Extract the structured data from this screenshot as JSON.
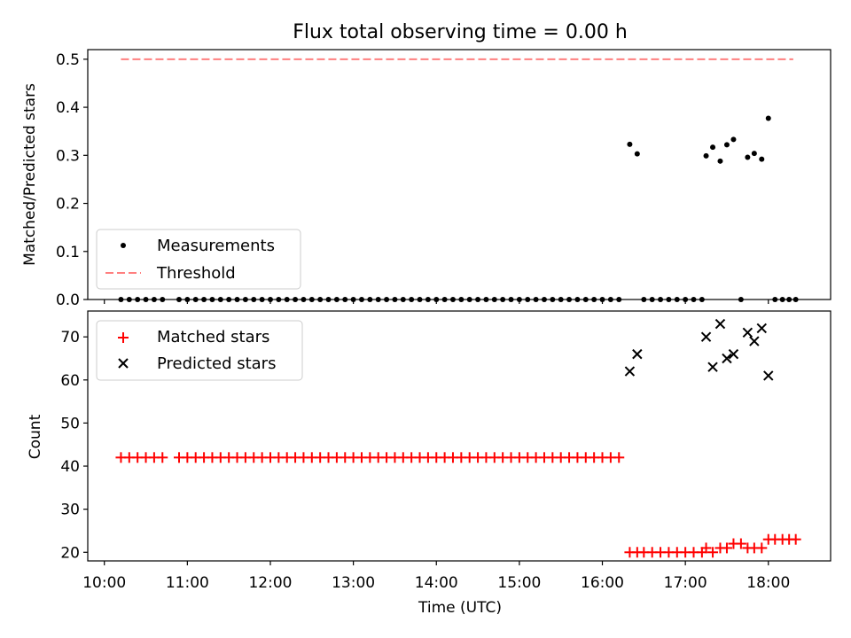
{
  "colors": {
    "measurement": "#000000",
    "threshold": "#ff7f7f",
    "matched": "#ff0000",
    "predicted": "#000000",
    "axis": "#000000",
    "legend_border": "#cccccc"
  },
  "chart_data": {
    "title": "Flux total observing time = 0.00 h",
    "xlabel": "Time (UTC)",
    "x_ticks": [
      "10:00",
      "11:00",
      "12:00",
      "13:00",
      "14:00",
      "15:00",
      "16:00",
      "17:00",
      "18:00"
    ],
    "x_range_hours": [
      9.8,
      18.75
    ],
    "panels": [
      {
        "name": "ratio",
        "type": "scatter",
        "ylabel": "Matched/Predicted stars",
        "ylim": [
          0.0,
          0.52
        ],
        "yticks": [
          "0.0",
          "0.1",
          "0.2",
          "0.3",
          "0.4",
          "0.5"
        ],
        "legend": {
          "placement": "lower-left",
          "entries": [
            "Measurements",
            "Threshold"
          ]
        },
        "threshold": {
          "name": "Threshold",
          "value": 0.5,
          "x_start": 10.2,
          "x_end": 18.3
        },
        "series": [
          {
            "name": "Measurements",
            "marker": "dot",
            "points": [
              [
                10.2,
                0
              ],
              [
                10.3,
                0
              ],
              [
                10.4,
                0
              ],
              [
                10.5,
                0
              ],
              [
                10.6,
                0
              ],
              [
                10.7,
                0
              ],
              [
                10.9,
                0
              ],
              [
                11.0,
                0
              ],
              [
                11.1,
                0
              ],
              [
                11.2,
                0
              ],
              [
                11.3,
                0
              ],
              [
                11.4,
                0
              ],
              [
                11.5,
                0
              ],
              [
                11.6,
                0
              ],
              [
                11.7,
                0
              ],
              [
                11.8,
                0
              ],
              [
                11.9,
                0
              ],
              [
                12.0,
                0
              ],
              [
                12.1,
                0
              ],
              [
                12.2,
                0
              ],
              [
                12.3,
                0
              ],
              [
                12.4,
                0
              ],
              [
                12.5,
                0
              ],
              [
                12.6,
                0
              ],
              [
                12.7,
                0
              ],
              [
                12.8,
                0
              ],
              [
                12.9,
                0
              ],
              [
                13.0,
                0
              ],
              [
                13.1,
                0
              ],
              [
                13.2,
                0
              ],
              [
                13.3,
                0
              ],
              [
                13.4,
                0
              ],
              [
                13.5,
                0
              ],
              [
                13.6,
                0
              ],
              [
                13.7,
                0
              ],
              [
                13.8,
                0
              ],
              [
                13.9,
                0
              ],
              [
                14.0,
                0
              ],
              [
                14.1,
                0
              ],
              [
                14.2,
                0
              ],
              [
                14.3,
                0
              ],
              [
                14.4,
                0
              ],
              [
                14.5,
                0
              ],
              [
                14.6,
                0
              ],
              [
                14.7,
                0
              ],
              [
                14.8,
                0
              ],
              [
                14.9,
                0
              ],
              [
                15.0,
                0
              ],
              [
                15.1,
                0
              ],
              [
                15.2,
                0
              ],
              [
                15.3,
                0
              ],
              [
                15.4,
                0
              ],
              [
                15.5,
                0
              ],
              [
                15.6,
                0
              ],
              [
                15.7,
                0
              ],
              [
                15.8,
                0
              ],
              [
                15.9,
                0
              ],
              [
                16.0,
                0
              ],
              [
                16.1,
                0
              ],
              [
                16.2,
                0
              ],
              [
                16.33,
                0.323
              ],
              [
                16.42,
                0.303
              ],
              [
                16.5,
                0
              ],
              [
                16.6,
                0
              ],
              [
                16.7,
                0
              ],
              [
                16.8,
                0
              ],
              [
                16.9,
                0
              ],
              [
                17.0,
                0
              ],
              [
                17.1,
                0
              ],
              [
                17.2,
                0
              ],
              [
                17.25,
                0.299
              ],
              [
                17.33,
                0.317
              ],
              [
                17.42,
                0.288
              ],
              [
                17.5,
                0.322
              ],
              [
                17.58,
                0.333
              ],
              [
                17.67,
                0
              ],
              [
                17.75,
                0.296
              ],
              [
                17.83,
                0.304
              ],
              [
                17.92,
                0.292
              ],
              [
                18.0,
                0.377
              ],
              [
                18.08,
                0
              ],
              [
                18.17,
                0
              ],
              [
                18.25,
                0
              ],
              [
                18.33,
                0
              ]
            ]
          }
        ]
      },
      {
        "name": "count",
        "type": "scatter",
        "ylabel": "Count",
        "ylim": [
          18,
          76
        ],
        "yticks": [
          "20",
          "30",
          "40",
          "50",
          "60",
          "70"
        ],
        "legend": {
          "placement": "upper-left",
          "entries": [
            "Matched stars",
            "Predicted stars"
          ]
        },
        "series": [
          {
            "name": "Matched stars",
            "marker": "plus",
            "points": [
              [
                10.2,
                42
              ],
              [
                10.3,
                42
              ],
              [
                10.4,
                42
              ],
              [
                10.5,
                42
              ],
              [
                10.6,
                42
              ],
              [
                10.7,
                42
              ],
              [
                10.9,
                42
              ],
              [
                11.0,
                42
              ],
              [
                11.1,
                42
              ],
              [
                11.2,
                42
              ],
              [
                11.3,
                42
              ],
              [
                11.4,
                42
              ],
              [
                11.5,
                42
              ],
              [
                11.6,
                42
              ],
              [
                11.7,
                42
              ],
              [
                11.8,
                42
              ],
              [
                11.9,
                42
              ],
              [
                12.0,
                42
              ],
              [
                12.1,
                42
              ],
              [
                12.2,
                42
              ],
              [
                12.3,
                42
              ],
              [
                12.4,
                42
              ],
              [
                12.5,
                42
              ],
              [
                12.6,
                42
              ],
              [
                12.7,
                42
              ],
              [
                12.8,
                42
              ],
              [
                12.9,
                42
              ],
              [
                13.0,
                42
              ],
              [
                13.1,
                42
              ],
              [
                13.2,
                42
              ],
              [
                13.3,
                42
              ],
              [
                13.4,
                42
              ],
              [
                13.5,
                42
              ],
              [
                13.6,
                42
              ],
              [
                13.7,
                42
              ],
              [
                13.8,
                42
              ],
              [
                13.9,
                42
              ],
              [
                14.0,
                42
              ],
              [
                14.1,
                42
              ],
              [
                14.2,
                42
              ],
              [
                14.3,
                42
              ],
              [
                14.4,
                42
              ],
              [
                14.5,
                42
              ],
              [
                14.6,
                42
              ],
              [
                14.7,
                42
              ],
              [
                14.8,
                42
              ],
              [
                14.9,
                42
              ],
              [
                15.0,
                42
              ],
              [
                15.1,
                42
              ],
              [
                15.2,
                42
              ],
              [
                15.3,
                42
              ],
              [
                15.4,
                42
              ],
              [
                15.5,
                42
              ],
              [
                15.6,
                42
              ],
              [
                15.7,
                42
              ],
              [
                15.8,
                42
              ],
              [
                15.9,
                42
              ],
              [
                16.0,
                42
              ],
              [
                16.1,
                42
              ],
              [
                16.2,
                42
              ],
              [
                16.33,
                20
              ],
              [
                16.42,
                20
              ],
              [
                16.5,
                20
              ],
              [
                16.6,
                20
              ],
              [
                16.7,
                20
              ],
              [
                16.8,
                20
              ],
              [
                16.9,
                20
              ],
              [
                17.0,
                20
              ],
              [
                17.1,
                20
              ],
              [
                17.2,
                20
              ],
              [
                17.25,
                21
              ],
              [
                17.33,
                20
              ],
              [
                17.42,
                21
              ],
              [
                17.5,
                21
              ],
              [
                17.58,
                22
              ],
              [
                17.67,
                22
              ],
              [
                17.75,
                21
              ],
              [
                17.83,
                21
              ],
              [
                17.92,
                21
              ],
              [
                18.0,
                23
              ],
              [
                18.08,
                23
              ],
              [
                18.17,
                23
              ],
              [
                18.25,
                23
              ],
              [
                18.33,
                23
              ]
            ]
          },
          {
            "name": "Predicted stars",
            "marker": "x",
            "points": [
              [
                16.33,
                62
              ],
              [
                16.42,
                66
              ],
              [
                17.25,
                70
              ],
              [
                17.33,
                63
              ],
              [
                17.42,
                73
              ],
              [
                17.5,
                65
              ],
              [
                17.58,
                66
              ],
              [
                17.75,
                71
              ],
              [
                17.83,
                69
              ],
              [
                17.92,
                72
              ],
              [
                18.0,
                61
              ]
            ]
          }
        ]
      }
    ]
  }
}
